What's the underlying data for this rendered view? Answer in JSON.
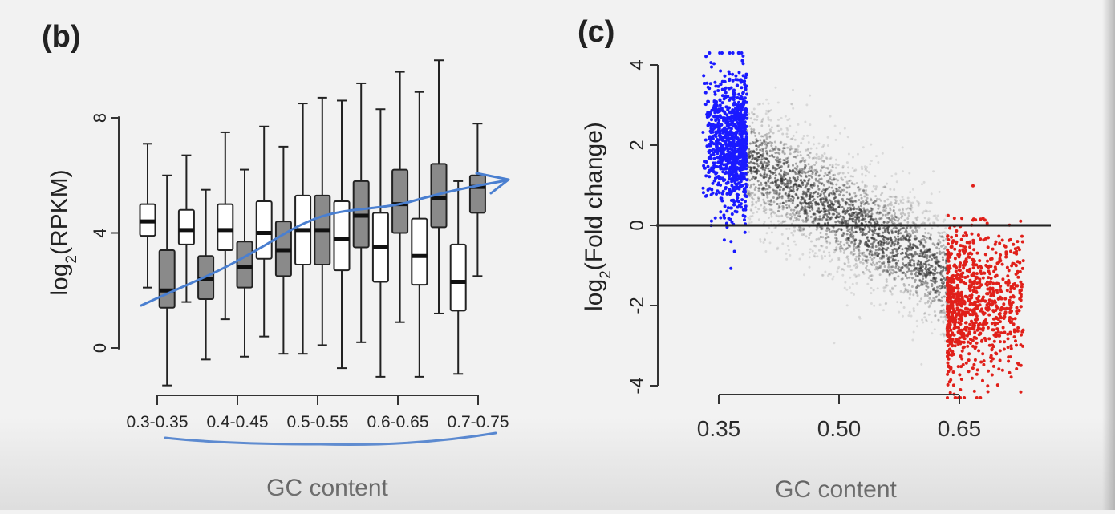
{
  "panels": {
    "b": {
      "label": "(b)",
      "x_title": "GC content",
      "y_title_main": "log",
      "y_title_sub": "2",
      "y_title_tail": "(RPKM)"
    },
    "c": {
      "label": "(c)",
      "x_title": "GC content",
      "y_title_main": "log",
      "y_title_sub": "2",
      "y_title_tail": "(Fold change)"
    }
  },
  "colors": {
    "box_white": "#ffffff",
    "box_gray": "#8a8a8a",
    "low_gc": "#1a1aff",
    "high_gc": "#e0201a",
    "mid_points": "#333333",
    "annotation_pen": "#4a7fd0"
  },
  "chart_data": [
    {
      "type": "box",
      "categories": [
        "0.3-0.35",
        "0.4-0.45",
        "0.5-0.55",
        "0.6-0.65",
        "0.7-0.75"
      ],
      "group_count_per_category": 2,
      "xlabel": "GC content",
      "ylabel": "log2(RPKM)",
      "ylim": [
        -1.6,
        10.2
      ],
      "yticks": [
        0,
        4,
        8
      ],
      "boxes": [
        {
          "fill": "white",
          "min": 2.1,
          "q1": 3.9,
          "median": 4.4,
          "q3": 5.0,
          "max": 7.1
        },
        {
          "fill": "gray",
          "min": -1.3,
          "q1": 1.4,
          "median": 2.0,
          "q3": 3.4,
          "max": 6.0
        },
        {
          "fill": "white",
          "min": 1.6,
          "q1": 3.6,
          "median": 4.1,
          "q3": 4.8,
          "max": 6.7
        },
        {
          "fill": "gray",
          "min": -0.4,
          "q1": 1.7,
          "median": 2.4,
          "q3": 3.2,
          "max": 5.5
        },
        {
          "fill": "white",
          "min": 1.0,
          "q1": 3.4,
          "median": 4.1,
          "q3": 5.0,
          "max": 7.5
        },
        {
          "fill": "gray",
          "min": -0.3,
          "q1": 2.1,
          "median": 2.8,
          "q3": 3.7,
          "max": 6.2
        },
        {
          "fill": "white",
          "min": 0.4,
          "q1": 3.1,
          "median": 4.0,
          "q3": 5.1,
          "max": 7.7
        },
        {
          "fill": "gray",
          "min": -0.2,
          "q1": 2.5,
          "median": 3.4,
          "q3": 4.4,
          "max": 7.0
        },
        {
          "fill": "white",
          "min": -0.2,
          "q1": 2.9,
          "median": 4.1,
          "q3": 5.3,
          "max": 8.5
        },
        {
          "fill": "gray",
          "min": 0.1,
          "q1": 2.9,
          "median": 4.1,
          "q3": 5.3,
          "max": 8.7
        },
        {
          "fill": "white",
          "min": -0.7,
          "q1": 2.7,
          "median": 3.8,
          "q3": 5.1,
          "max": 8.6
        },
        {
          "fill": "gray",
          "min": 0.2,
          "q1": 3.5,
          "median": 4.6,
          "q3": 5.8,
          "max": 9.2
        },
        {
          "fill": "white",
          "min": -1.0,
          "q1": 2.3,
          "median": 3.5,
          "q3": 4.7,
          "max": 8.3
        },
        {
          "fill": "gray",
          "min": 0.9,
          "q1": 4.0,
          "median": 5.0,
          "q3": 6.2,
          "max": 9.6
        },
        {
          "fill": "white",
          "min": -1.0,
          "q1": 2.2,
          "median": 3.2,
          "q3": 4.5,
          "max": 8.9
        },
        {
          "fill": "gray",
          "min": 1.2,
          "q1": 4.2,
          "median": 5.2,
          "q3": 6.4,
          "max": 10.0
        },
        {
          "fill": "white",
          "min": -0.9,
          "q1": 1.3,
          "median": 2.3,
          "q3": 3.6,
          "max": 5.8
        },
        {
          "fill": "gray",
          "min": 2.5,
          "q1": 4.7,
          "median": 5.6,
          "q3": 6.0,
          "max": 7.8
        }
      ]
    },
    {
      "type": "scatter",
      "xlabel": "GC content",
      "ylabel": "log2(Fold change)",
      "xlim": [
        0.3,
        0.75
      ],
      "ylim": [
        -4.3,
        4.3
      ],
      "xticks": [
        0.35,
        0.5,
        0.65
      ],
      "yticks": [
        4,
        2,
        0,
        -2,
        -4
      ],
      "hline": 0,
      "groups": [
        {
          "color": "blue",
          "x_range": [
            0.33,
            0.385
          ],
          "y_center": 2.0,
          "y_spread": 0.9
        },
        {
          "color": "gray",
          "x_range": [
            0.385,
            0.635
          ],
          "trend": "decreasing",
          "y_at_start": 1.7,
          "y_at_end": -1.3
        },
        {
          "color": "red",
          "x_range": [
            0.635,
            0.73
          ],
          "y_center": -2.0,
          "y_spread": 0.9
        }
      ]
    }
  ]
}
